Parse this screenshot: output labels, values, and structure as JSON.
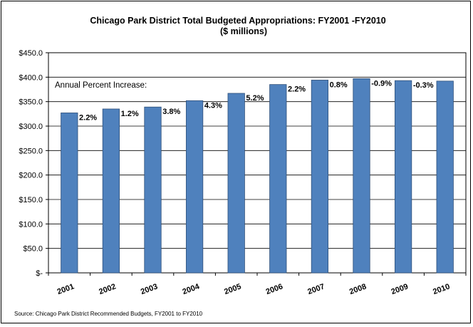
{
  "chart_data": {
    "type": "bar",
    "title": "Chicago Park District Total Budgeted Appropriations: FY2001 -FY2010",
    "subtitle": "($ millions)",
    "categories": [
      "2001",
      "2002",
      "2003",
      "2004",
      "2005",
      "2006",
      "2007",
      "2008",
      "2009",
      "2010"
    ],
    "values": [
      327,
      335,
      339,
      352,
      367,
      385,
      394,
      397,
      393,
      392
    ],
    "data_labels": [
      "2.2%",
      "1.2%",
      "3.8%",
      "4.3%",
      "5.2%",
      "2.2%",
      "0.8%",
      "-0.9%",
      "-0.3%",
      ""
    ],
    "annotation": "Annual Percent Increase:",
    "ylim": [
      0,
      450
    ],
    "yticks": [
      0,
      50,
      100,
      150,
      200,
      250,
      300,
      350,
      400,
      450
    ],
    "ytick_labels": [
      "$-",
      "$50.0",
      "$100.0",
      "$150.0",
      "$200.0",
      "$250.0",
      "$300.0",
      "$350.0",
      "$400.0",
      "$450.0"
    ],
    "xlabel": "",
    "ylabel": "",
    "grid": true,
    "bar_color": "#4F81BD",
    "bar_edge_color": "#2E4F7A",
    "source": "Source: Chicago Park District Recommended Budgets, FY2001 to FY2010"
  }
}
